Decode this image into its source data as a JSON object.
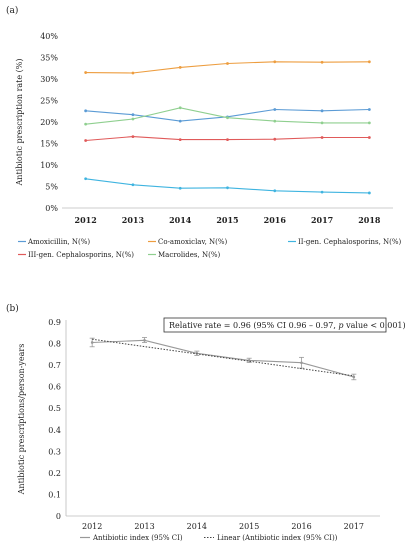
{
  "panel_a_label": "(a)",
  "panel_b_label": "(b)",
  "chart_data": [
    {
      "type": "line",
      "ylabel": "Antibiotic prescription rate (%)",
      "x": [
        "2012",
        "2013",
        "2014",
        "2015",
        "2016",
        "2017",
        "2018"
      ],
      "ylim": [
        0,
        40
      ],
      "y_ticks": [
        "0%",
        "5%",
        "10%",
        "15%",
        "20%",
        "25%",
        "30%",
        "35%",
        "40%"
      ],
      "grid": false,
      "legend_position": "bottom",
      "series": [
        {
          "name": "Amoxicillin, N(%)",
          "color": "#5b9bd5",
          "values": [
            22.6,
            21.7,
            20.2,
            21.2,
            22.9,
            22.6,
            22.9
          ]
        },
        {
          "name": "Co-amoxiclav, N(%)",
          "color": "#ed9d3f",
          "values": [
            31.5,
            31.4,
            32.7,
            33.6,
            34.0,
            33.9,
            34.0
          ]
        },
        {
          "name": "II-gen. Cephalosporins, N(%)",
          "color": "#3fb4e0",
          "values": [
            6.8,
            5.4,
            4.6,
            4.7,
            4.0,
            3.7,
            3.5
          ]
        },
        {
          "name": "III-gen. Cephalosporins, N(%)",
          "color": "#e05a5a",
          "values": [
            15.7,
            16.6,
            15.9,
            15.9,
            16.0,
            16.4,
            16.4
          ]
        },
        {
          "name": "Macrolides, N(%)",
          "color": "#8fcf8f",
          "values": [
            19.5,
            20.7,
            23.3,
            21.0,
            20.2,
            19.8,
            19.8
          ]
        }
      ]
    },
    {
      "type": "line",
      "ylabel": "Antibiotic prescriptions/person-years",
      "x": [
        "2012",
        "2013",
        "2014",
        "2015",
        "2016",
        "2017"
      ],
      "ylim": [
        0,
        0.9
      ],
      "y_ticks": [
        "0",
        "0.1",
        "0.2",
        "0.3",
        "0.4",
        "0.5",
        "0.6",
        "0.7",
        "0.8",
        "0.9"
      ],
      "grid": false,
      "legend_position": "bottom",
      "annotation": {
        "prefix": "Relative rate = 0.96 (95% CI 0.96 – 0.97, ",
        "italic": "p",
        "suffix": " value < 0.001)"
      },
      "series": [
        {
          "name": "Antibiotic index (95% CI)",
          "color": "#999999",
          "style": "solid",
          "values": [
            0.805,
            0.815,
            0.755,
            0.722,
            0.711,
            0.645
          ],
          "ci_low": [
            0.785,
            0.805,
            0.745,
            0.712,
            0.686,
            0.632
          ],
          "ci_high": [
            0.825,
            0.828,
            0.765,
            0.732,
            0.736,
            0.658
          ]
        },
        {
          "name": "Linear (Antibiotic index (95% CI))",
          "color": "#444444",
          "style": "dotted",
          "values": [
            0.82,
            0.786,
            0.752,
            0.718,
            0.684,
            0.65
          ]
        }
      ]
    }
  ]
}
